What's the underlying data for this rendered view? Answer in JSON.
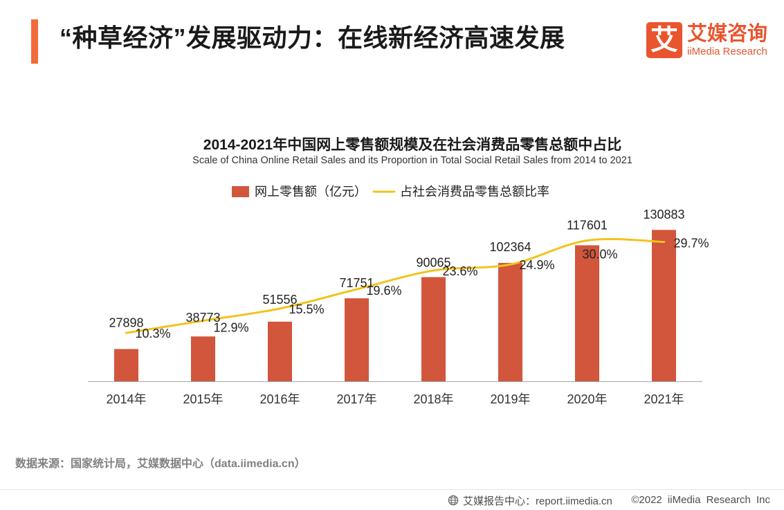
{
  "header": {
    "title": "“种草经济”发展驱动力：在线新经济高速发展"
  },
  "logo": {
    "mark": "艾",
    "name_cn": "艾媒咨询",
    "name_en": "iiMedia Research"
  },
  "chart_data": {
    "type": "bar",
    "title": "2014-2021年中国网上零售额规模及在社会消费品零售总额中占比",
    "subtitle": "Scale of China Online Retail Sales and its Proportion in Total Social Retail Sales from 2014 to 2021",
    "categories": [
      "2014年",
      "2015年",
      "2016年",
      "2017年",
      "2018年",
      "2019年",
      "2020年",
      "2021年"
    ],
    "series": [
      {
        "name": "网上零售额（亿元）",
        "type": "bar",
        "color": "#d2563b",
        "values": [
          27898,
          38773,
          51556,
          71751,
          90065,
          102364,
          117601,
          130883
        ],
        "labels": [
          "27898",
          "38773",
          "51556",
          "71751",
          "90065",
          "102364",
          "117601",
          "130883"
        ]
      },
      {
        "name": "占社会消费品零售总额比率",
        "type": "line",
        "color": "#f2c31a",
        "values": [
          10.3,
          12.9,
          15.5,
          19.6,
          23.6,
          24.9,
          30.0,
          29.7
        ],
        "labels": [
          "10.3%",
          "12.9%",
          "15.5%",
          "19.6%",
          "23.6%",
          "24.9%",
          "30.0%",
          "29.7%"
        ]
      }
    ],
    "ylim": [
      0,
      140000
    ],
    "y2lim": [
      0,
      34.5
    ],
    "grid": false,
    "legend": "top-center"
  },
  "colors": {
    "accent": "#f26b3a",
    "brand": "#e9552e"
  },
  "icons": {
    "report_center": "globe-icon"
  },
  "footer": {
    "source": "数据来源：国家统计局，艾媒数据中心（data.iimedia.cn）",
    "report_center": "艾媒报告中心：report.iimedia.cn",
    "copyright": "©2022 iiMedia Research Inc"
  }
}
